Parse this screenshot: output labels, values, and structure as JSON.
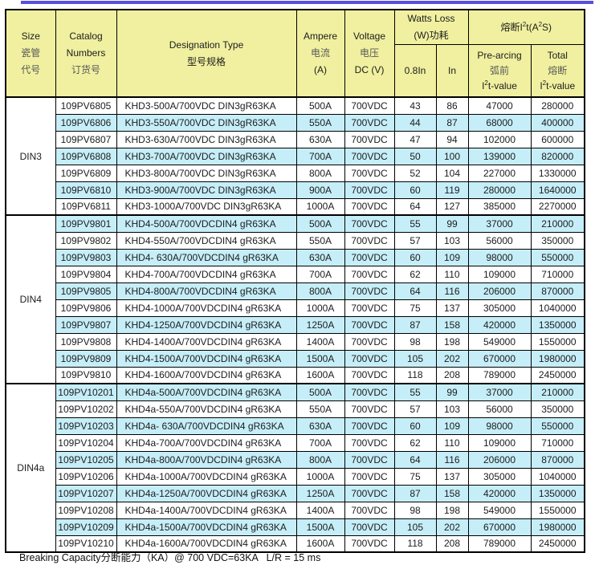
{
  "accent": {
    "top_rule_color": "#584fe0",
    "header_bg": "#f0f0a0",
    "row_alt_bg": "#c6eef8",
    "border_color": "#000000"
  },
  "header": {
    "size": [
      "Size",
      "瓷管",
      "代号"
    ],
    "catalog": [
      "Catalog",
      "Numbers",
      "订货号"
    ],
    "designation": [
      "Designation Type",
      "型号规格"
    ],
    "ampere": [
      "Ampere",
      "电流",
      "(A)"
    ],
    "voltage": [
      "Voltage",
      "电压",
      "DC (V)"
    ],
    "watts_group": [
      "Watts Loss",
      "(W)功耗"
    ],
    "watts_sub": [
      "0.8In",
      "In"
    ],
    "i2t_group": {
      "p1": "熔断I",
      "s1": "2",
      "p2": "t(A",
      "s2": "2",
      "p3": "S)"
    },
    "prearcing": {
      "l1": "Pre-arcing",
      "l2": "弧前",
      "v": {
        "p1": "I",
        "s1": "2",
        "p2": "t-value"
      }
    },
    "total": {
      "l1": "Total",
      "l2": "熔断",
      "v": {
        "p1": "I",
        "s1": "2",
        "p2": "t-value"
      }
    }
  },
  "groups": [
    {
      "size": "DIN3",
      "rows": [
        [
          "109PV6805",
          "KHD3-500A/700VDC DIN3gR63KA",
          "500A",
          "700VDC",
          "43",
          "86",
          "47000",
          "280000"
        ],
        [
          "109PV6806",
          "KHD3-550A/700VDC DIN3gR63KA",
          "550A",
          "700VDC",
          "44",
          "87",
          "68000",
          "400000"
        ],
        [
          "109PV6807",
          "KHD3-630A/700VDC DIN3gR63KA",
          "630A",
          "700VDC",
          "47",
          "94",
          "102000",
          "600000"
        ],
        [
          "109PV6808",
          "KHD3-700A/700VDC DIN3gR63KA",
          "700A",
          "700VDC",
          "50",
          "100",
          "139000",
          "820000"
        ],
        [
          "109PV6809",
          "KHD3-800A/700VDC DIN3gR63KA",
          "800A",
          "700VDC",
          "52",
          "104",
          "227000",
          "1330000"
        ],
        [
          "109PV6810",
          "KHD3-900A/700VDC DIN3gR63KA",
          "900A",
          "700VDC",
          "60",
          "119",
          "280000",
          "1640000"
        ],
        [
          "109PV6811",
          "KHD3-1000A/700VDC DIN3gR63KA",
          "1000A",
          "700VDC",
          "64",
          "127",
          "385000",
          "2270000"
        ]
      ]
    },
    {
      "size": "DIN4",
      "rows": [
        [
          "109PV9801",
          "KHD4-500A/700VDCDIN4 gR63KA",
          "500A",
          "700VDC",
          "55",
          "99",
          "37000",
          "210000"
        ],
        [
          "109PV9802",
          "KHD4-550A/700VDCDIN4 gR63KA",
          "550A",
          "700VDC",
          "57",
          "103",
          "56000",
          "350000"
        ],
        [
          "109PV9803",
          "KHD4- 630A/700VDCDIN4 gR63KA",
          "630A",
          "700VDC",
          "60",
          "109",
          "98000",
          "550000"
        ],
        [
          "109PV9804",
          "KHD4-700A/700VDCDIN4 gR63KA",
          "700A",
          "700VDC",
          "62",
          "110",
          "109000",
          "710000"
        ],
        [
          "109PV9805",
          "KHD4-800A/700VDCDIN4 gR63KA",
          "800A",
          "700VDC",
          "64",
          "116",
          "206000",
          "870000"
        ],
        [
          "109PV9806",
          "KHD4-1000A/700VDCDIN4 gR63KA",
          "1000A",
          "700VDC",
          "75",
          "137",
          "305000",
          "1040000"
        ],
        [
          "109PV9807",
          "KHD4-1250A/700VDCDIN4 gR63KA",
          "1250A",
          "700VDC",
          "87",
          "158",
          "420000",
          "1350000"
        ],
        [
          "109PV9808",
          "KHD4-1400A/700VDCDIN4 gR63KA",
          "1400A",
          "700VDC",
          "98",
          "198",
          "549000",
          "1550000"
        ],
        [
          "109PV9809",
          "KHD4-1500A/700VDCDIN4 gR63KA",
          "1500A",
          "700VDC",
          "105",
          "202",
          "670000",
          "1980000"
        ],
        [
          "109PV9810",
          "KHD4-1600A/700VDCDIN4 gR63KA",
          "1600A",
          "700VDC",
          "118",
          "208",
          "789000",
          "2450000"
        ]
      ]
    },
    {
      "size": "DIN4a",
      "rows": [
        [
          "109PV10201",
          "KHD4a-500A/700VDCDIN4 gR63KA",
          "500A",
          "700VDC",
          "55",
          "99",
          "37000",
          "210000"
        ],
        [
          "109PV10202",
          "KHD4a-550A/700VDCDIN4 gR63KA",
          "550A",
          "700VDC",
          "57",
          "103",
          "56000",
          "350000"
        ],
        [
          "109PV10203",
          "KHD4a- 630A/700VDCDIN4 gR63KA",
          "630A",
          "700VDC",
          "60",
          "109",
          "98000",
          "550000"
        ],
        [
          "109PV10204",
          "KHD4a-700A/700VDCDIN4 gR63KA",
          "700A",
          "700VDC",
          "62",
          "110",
          "109000",
          "710000"
        ],
        [
          "109PV10205",
          "KHD4a-800A/700VDCDIN4 gR63KA",
          "800A",
          "700VDC",
          "64",
          "116",
          "206000",
          "870000"
        ],
        [
          "109PV10206",
          "KHD4a-1000A/700VDCDIN4 gR63KA",
          "1000A",
          "700VDC",
          "75",
          "137",
          "305000",
          "1040000"
        ],
        [
          "109PV10207",
          "KHD4a-1250A/700VDCDIN4 gR63KA",
          "1250A",
          "700VDC",
          "87",
          "158",
          "420000",
          "1350000"
        ],
        [
          "109PV10208",
          "KHD4a-1400A/700VDCDIN4 gR63KA",
          "1400A",
          "700VDC",
          "98",
          "198",
          "549000",
          "1550000"
        ],
        [
          "109PV10209",
          "KHD4a-1500A/700VDCDIN4 gR63KA",
          "1500A",
          "700VDC",
          "105",
          "202",
          "670000",
          "1980000"
        ],
        [
          "109PV10210",
          "KHD4a-1600A/700VDCDIN4 gR63KA",
          "1600A",
          "700VDC",
          "118",
          "208",
          "789000",
          "2450000"
        ]
      ]
    }
  ],
  "footer": {
    "text": "Breaking Capacity分断能力（KA）@ 700 VDC=63KA   L/R = 15 ms"
  }
}
